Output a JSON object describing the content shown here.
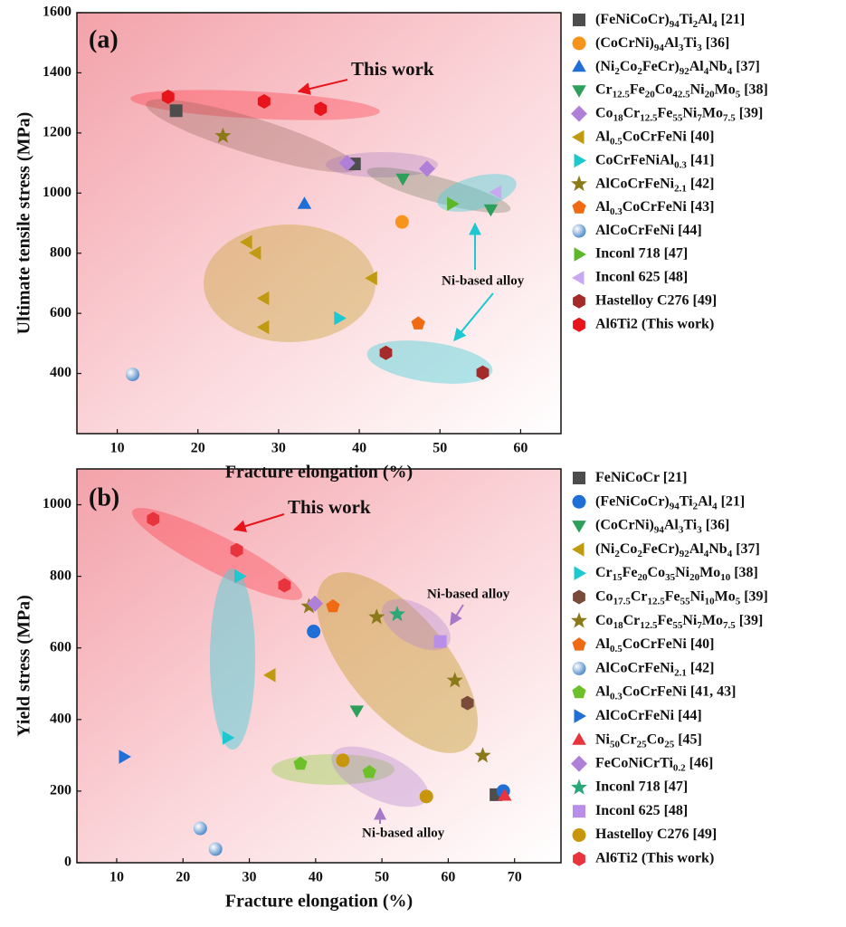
{
  "chart_data": [
    {
      "type": "scatter",
      "xlabel": "Fracture elongation (%)",
      "ylabel": "Ultimate tensile stress (MPa)",
      "xlim": [
        5,
        65
      ],
      "xticks": [
        10,
        20,
        30,
        40,
        50,
        60
      ],
      "ylim": [
        200,
        1600
      ],
      "yticks": [
        400,
        600,
        800,
        1000,
        1200,
        1400,
        1600
      ],
      "legend": "right",
      "annotations": [
        "(a)",
        "This work",
        "Ni-based alloy"
      ],
      "series": [
        {
          "name": "(FeNiCoCr)94Ti2Al4 [21]",
          "color": "#4d4d4d",
          "marker": "square",
          "x": [
            17.3,
            39.4
          ],
          "values": [
            1274,
            1097
          ]
        },
        {
          "name": "(CoCrNi)94Al3Ti3 [36]",
          "color": "#f7941d",
          "marker": "circle",
          "x": [
            45.3
          ],
          "values": [
            904
          ]
        },
        {
          "name": "(Ni2Co2FeCr)92Al4Nb4 [37]",
          "color": "#1f6fd6",
          "marker": "triangle-up",
          "x": [
            33.2
          ],
          "values": [
            964
          ]
        },
        {
          "name": "Cr12.5Fe20Co42.5Ni20Mo5 [38]",
          "color": "#2ca05a",
          "marker": "triangle-down",
          "x": [
            45.4,
            56.3
          ],
          "values": [
            1048,
            946
          ]
        },
        {
          "name": "Co18Cr12.5Fe55Ni7Mo7.5 [39]",
          "color": "#b07fd8",
          "marker": "diamond",
          "x": [
            38.5,
            48.4
          ],
          "values": [
            1100,
            1081
          ]
        },
        {
          "name": "Al0.5CoCrFeNi [40]",
          "color": "#c09a10",
          "marker": "triangle-left",
          "x": [
            26.1,
            27.2,
            28.2,
            28.2,
            41.6
          ],
          "values": [
            837,
            801,
            650,
            554,
            717
          ]
        },
        {
          "name": "CoCrFeNiAl0.3 [41]",
          "color": "#1ec8d0",
          "marker": "triangle-right",
          "x": [
            37.5
          ],
          "values": [
            584
          ]
        },
        {
          "name": "AlCoCrFeNi2.1 [42]",
          "color": "#8a7a1a",
          "marker": "star",
          "x": [
            23.1
          ],
          "values": [
            1190
          ]
        },
        {
          "name": "Al0.3CoCrFeNi [43]",
          "color": "#f06a14",
          "marker": "pentagon",
          "x": [
            47.3
          ],
          "values": [
            566
          ]
        },
        {
          "name": "AlCoCrFeNi [44]",
          "color": "#7aaee0",
          "marker": "sphere",
          "x": [
            11.9
          ],
          "values": [
            397
          ]
        },
        {
          "name": "Inconl 718 [47]",
          "color": "#5cb82a",
          "marker": "triangle-right",
          "x": [
            51.5
          ],
          "values": [
            964
          ]
        },
        {
          "name": "Inconl 625 [48]",
          "color": "#c8a8f0",
          "marker": "triangle-left",
          "x": [
            57.0
          ],
          "values": [
            1003
          ]
        },
        {
          "name": "Hastelloy C276 [49]",
          "color": "#a52a2a",
          "marker": "hexagon",
          "x": [
            43.3,
            55.3
          ],
          "values": [
            469,
            403
          ]
        },
        {
          "name": "Al6Ti2 (This work)",
          "color": "#e8141c",
          "marker": "hexagon",
          "x": [
            16.3,
            28.2,
            35.2
          ],
          "values": [
            1320,
            1305,
            1280
          ]
        }
      ]
    },
    {
      "type": "scatter",
      "xlabel": "Fracture elongation (%)",
      "ylabel": "Yield stress (MPa)",
      "xlim": [
        4,
        77
      ],
      "xticks": [
        10,
        20,
        30,
        40,
        50,
        60,
        70
      ],
      "ylim": [
        0,
        1100
      ],
      "yticks": [
        0,
        200,
        400,
        600,
        800,
        1000
      ],
      "legend": "right",
      "annotations": [
        "(b)",
        "This work",
        "Ni-based alloy",
        "Ni-based alloy"
      ],
      "series": [
        {
          "name": "FeNiCoCr [21]",
          "color": "#4d4d4d",
          "marker": "square",
          "x": [
            67.2
          ],
          "values": [
            190
          ]
        },
        {
          "name": "(FeNiCoCr)94Ti2Al4 [21]",
          "color": "#1f6fd6",
          "marker": "circle",
          "x": [
            39.7,
            68.3
          ],
          "values": [
            646,
            200
          ]
        },
        {
          "name": "(CoCrNi)94Al3Ti3 [36]",
          "color": "#2ca05a",
          "marker": "triangle-down",
          "x": [
            46.2
          ],
          "values": [
            425
          ]
        },
        {
          "name": "(Ni2Co2FeCr)92Al4Nb4 [37]",
          "color": "#c09a10",
          "marker": "triangle-left",
          "x": [
            33.2
          ],
          "values": [
            524
          ]
        },
        {
          "name": "Cr15Fe20Co35Ni20Mo10 [38]",
          "color": "#1ec8d0",
          "marker": "triangle-right",
          "x": [
            28.5,
            26.7
          ],
          "values": [
            800,
            349
          ]
        },
        {
          "name": "Co17.5Cr12.5Fe55Ni10Mo5 [39]",
          "color": "#7a4a3a",
          "marker": "hexagon",
          "x": [
            62.9
          ],
          "values": [
            446
          ]
        },
        {
          "name": "Co18Cr12.5Fe55Ni7Mo7.5 [39]",
          "color": "#8a7a1a",
          "marker": "star",
          "x": [
            39.0,
            49.2,
            61.0,
            65.2
          ],
          "values": [
            716,
            686,
            509,
            299
          ]
        },
        {
          "name": "Al0.5CoCrFeNi [40]",
          "color": "#f06a14",
          "marker": "pentagon",
          "x": [
            42.6
          ],
          "values": [
            716
          ]
        },
        {
          "name": "AlCoCrFeNi2.1 [42]",
          "color": "#7aaee0",
          "marker": "sphere",
          "x": [
            22.6,
            24.9
          ],
          "values": [
            96,
            38
          ]
        },
        {
          "name": "Al0.3CoCrFeNi [41, 43]",
          "color": "#6cc02a",
          "marker": "pentagon",
          "x": [
            37.7,
            48.1
          ],
          "values": [
            276,
            253
          ]
        },
        {
          "name": "AlCoCrFeNi [44]",
          "color": "#1f6fd6",
          "marker": "triangle-right",
          "x": [
            11.1
          ],
          "values": [
            296
          ]
        },
        {
          "name": "Ni50Cr25Co25 [45]",
          "color": "#e8343c",
          "marker": "triangle-up",
          "x": [
            68.5
          ],
          "values": [
            187
          ]
        },
        {
          "name": "FeCoNiCrTi0.2 [46]",
          "color": "#b07fd8",
          "marker": "diamond",
          "x": [
            39.9
          ],
          "values": [
            724
          ]
        },
        {
          "name": "Inconl 718 [47]",
          "color": "#2aa878",
          "marker": "star",
          "x": [
            52.3
          ],
          "values": [
            694
          ]
        },
        {
          "name": "Inconl 625 [48]",
          "color": "#b88ee8",
          "marker": "square",
          "x": [
            58.8
          ],
          "values": [
            618
          ]
        },
        {
          "name": "Hastelloy C276 [49]",
          "color": "#c8960c",
          "marker": "circle",
          "x": [
            44.1,
            56.7
          ],
          "values": [
            286,
            185
          ]
        },
        {
          "name": "Al6Ti2 (This work)",
          "color": "#e8343c",
          "marker": "hexagon",
          "x": [
            15.5,
            28.1,
            35.3
          ],
          "values": [
            960,
            873,
            775
          ]
        }
      ]
    }
  ]
}
